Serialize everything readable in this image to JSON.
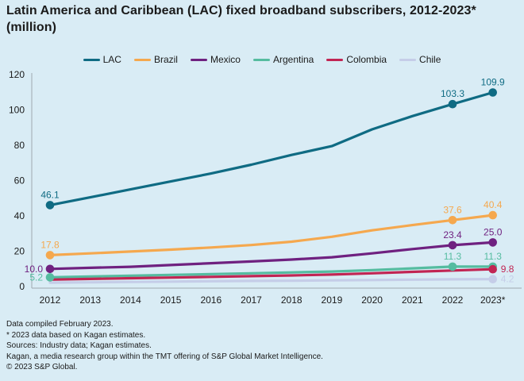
{
  "title": "Latin America and Caribbean (LAC) fixed broadband subscribers, 2012-2023* (million)",
  "colors": {
    "background": "#d9ecf5",
    "text": "#1a1a1a",
    "axis": "#9fa8ae"
  },
  "chart_data": {
    "type": "line",
    "title": "Latin America and Caribbean (LAC) fixed broadband subscribers, 2012-2023* (million)",
    "unit": "million",
    "x_tick_labels": [
      "2012",
      "2013",
      "2014",
      "2015",
      "2016",
      "2017",
      "2018",
      "2019",
      "2020",
      "2021",
      "2022",
      "2023*"
    ],
    "yticks": [
      0,
      20,
      40,
      60,
      80,
      100,
      120
    ],
    "ylim": [
      0,
      120
    ],
    "grid": false,
    "legend_position": "top-center",
    "series": [
      {
        "name": "LAC",
        "color": "#0f6b83",
        "values": [
          46.1,
          50.5,
          55.0,
          59.5,
          64.0,
          69.0,
          74.5,
          79.5,
          89.0,
          96.5,
          103.3,
          109.9
        ],
        "labels": [
          {
            "index": 0,
            "text": "46.1",
            "pos": "above"
          },
          {
            "index": 10,
            "text": "103.3",
            "pos": "above"
          },
          {
            "index": 11,
            "text": "109.9",
            "pos": "above"
          }
        ]
      },
      {
        "name": "Brazil",
        "color": "#f5a84e",
        "values": [
          17.8,
          18.8,
          19.8,
          20.9,
          22.1,
          23.5,
          25.4,
          28.2,
          31.8,
          34.8,
          37.6,
          40.4
        ],
        "labels": [
          {
            "index": 0,
            "text": "17.8",
            "pos": "above"
          },
          {
            "index": 10,
            "text": "37.6",
            "pos": "above"
          },
          {
            "index": 11,
            "text": "40.4",
            "pos": "above"
          }
        ]
      },
      {
        "name": "Mexico",
        "color": "#6f2180",
        "values": [
          10.0,
          10.6,
          11.2,
          12.2,
          13.2,
          14.2,
          15.3,
          16.6,
          18.8,
          21.2,
          23.4,
          25.0
        ],
        "labels": [
          {
            "index": 0,
            "text": "10.0",
            "pos": "left"
          },
          {
            "index": 10,
            "text": "23.4",
            "pos": "above"
          },
          {
            "index": 11,
            "text": "25.0",
            "pos": "above"
          }
        ]
      },
      {
        "name": "Argentina",
        "color": "#55bca0",
        "values": [
          5.2,
          5.7,
          6.1,
          6.6,
          7.0,
          7.5,
          8.0,
          8.5,
          9.3,
          10.3,
          11.3,
          11.3
        ],
        "labels": [
          {
            "index": 0,
            "text": "5.2",
            "pos": "left"
          },
          {
            "index": 10,
            "text": "11.3",
            "pos": "above"
          },
          {
            "index": 11,
            "text": "11.3",
            "pos": "above"
          }
        ]
      },
      {
        "name": "Colombia",
        "color": "#c12553",
        "values": [
          3.9,
          4.3,
          4.7,
          5.1,
          5.5,
          5.9,
          6.3,
          6.8,
          7.5,
          8.3,
          9.1,
          9.8
        ],
        "labels": [
          {
            "index": 11,
            "text": "9.8",
            "pos": "right"
          }
        ]
      },
      {
        "name": "Chile",
        "color": "#c5cde8",
        "values": [
          2.2,
          2.4,
          2.6,
          2.8,
          3.0,
          3.2,
          3.3,
          3.5,
          3.7,
          3.9,
          4.1,
          4.2
        ],
        "labels": [
          {
            "index": 11,
            "text": "4.2",
            "pos": "right"
          }
        ]
      }
    ]
  },
  "footnotes": [
    "Data compiled February 2023.",
    "* 2023 data based on Kagan estimates.",
    "Sources: Industry data; Kagan estimates.",
    "Kagan, a media research group within the TMT offering of S&P Global Market Intelligence.",
    "© 2023 S&P Global."
  ]
}
